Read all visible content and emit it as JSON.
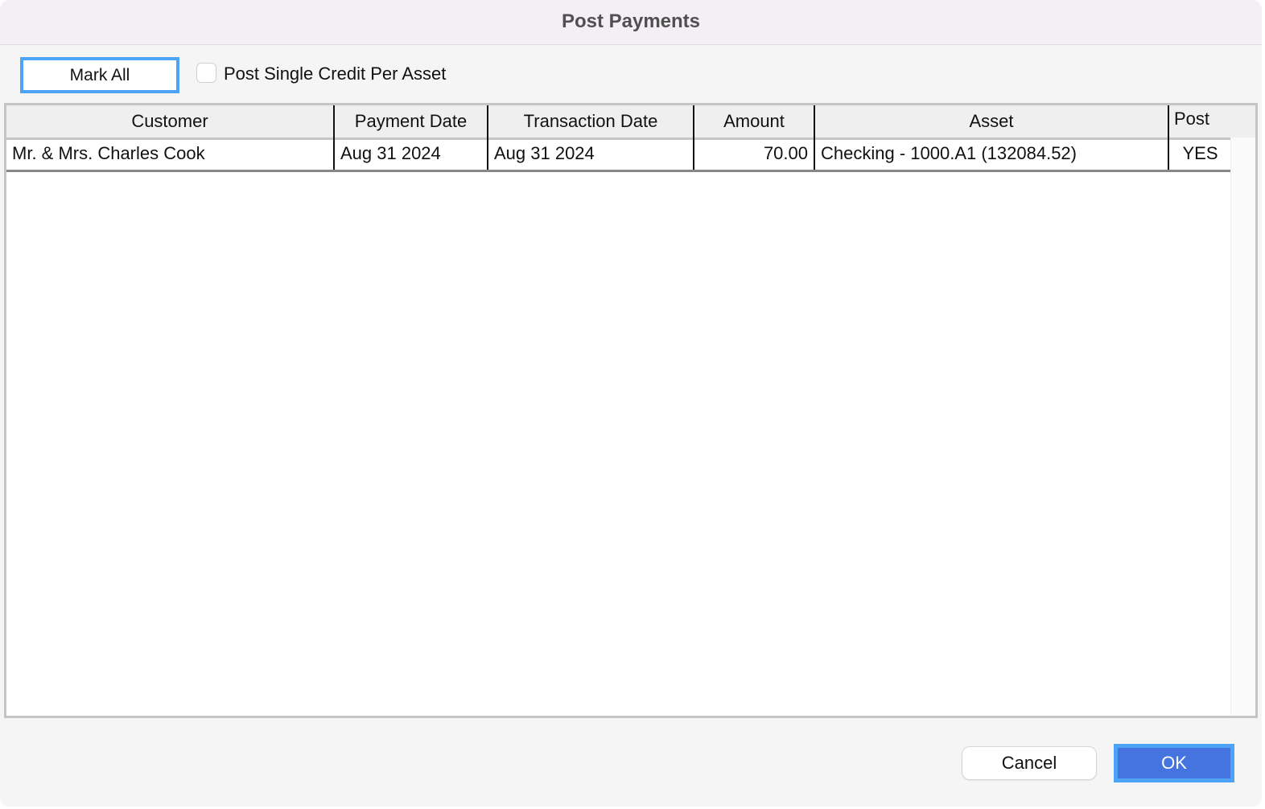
{
  "window": {
    "title": "Post Payments"
  },
  "toolbar": {
    "mark_all_label": "Mark All",
    "single_credit_label": "Post Single Credit Per Asset",
    "single_credit_checked": false
  },
  "table": {
    "columns": [
      "Customer",
      "Payment Date",
      "Transaction Date",
      "Amount",
      "Asset",
      "Post"
    ],
    "rows": [
      {
        "customer": "Mr. & Mrs. Charles Cook",
        "payment_date": "Aug 31 2024",
        "transaction_date": "Aug 31 2024",
        "amount": "70.00",
        "asset": "Checking - 1000.A1 (132084.52)",
        "post": "YES"
      }
    ]
  },
  "footer": {
    "cancel_label": "Cancel",
    "ok_label": "OK"
  },
  "colors": {
    "accent": "#4574e0",
    "focus_ring": "#4da3f5"
  }
}
